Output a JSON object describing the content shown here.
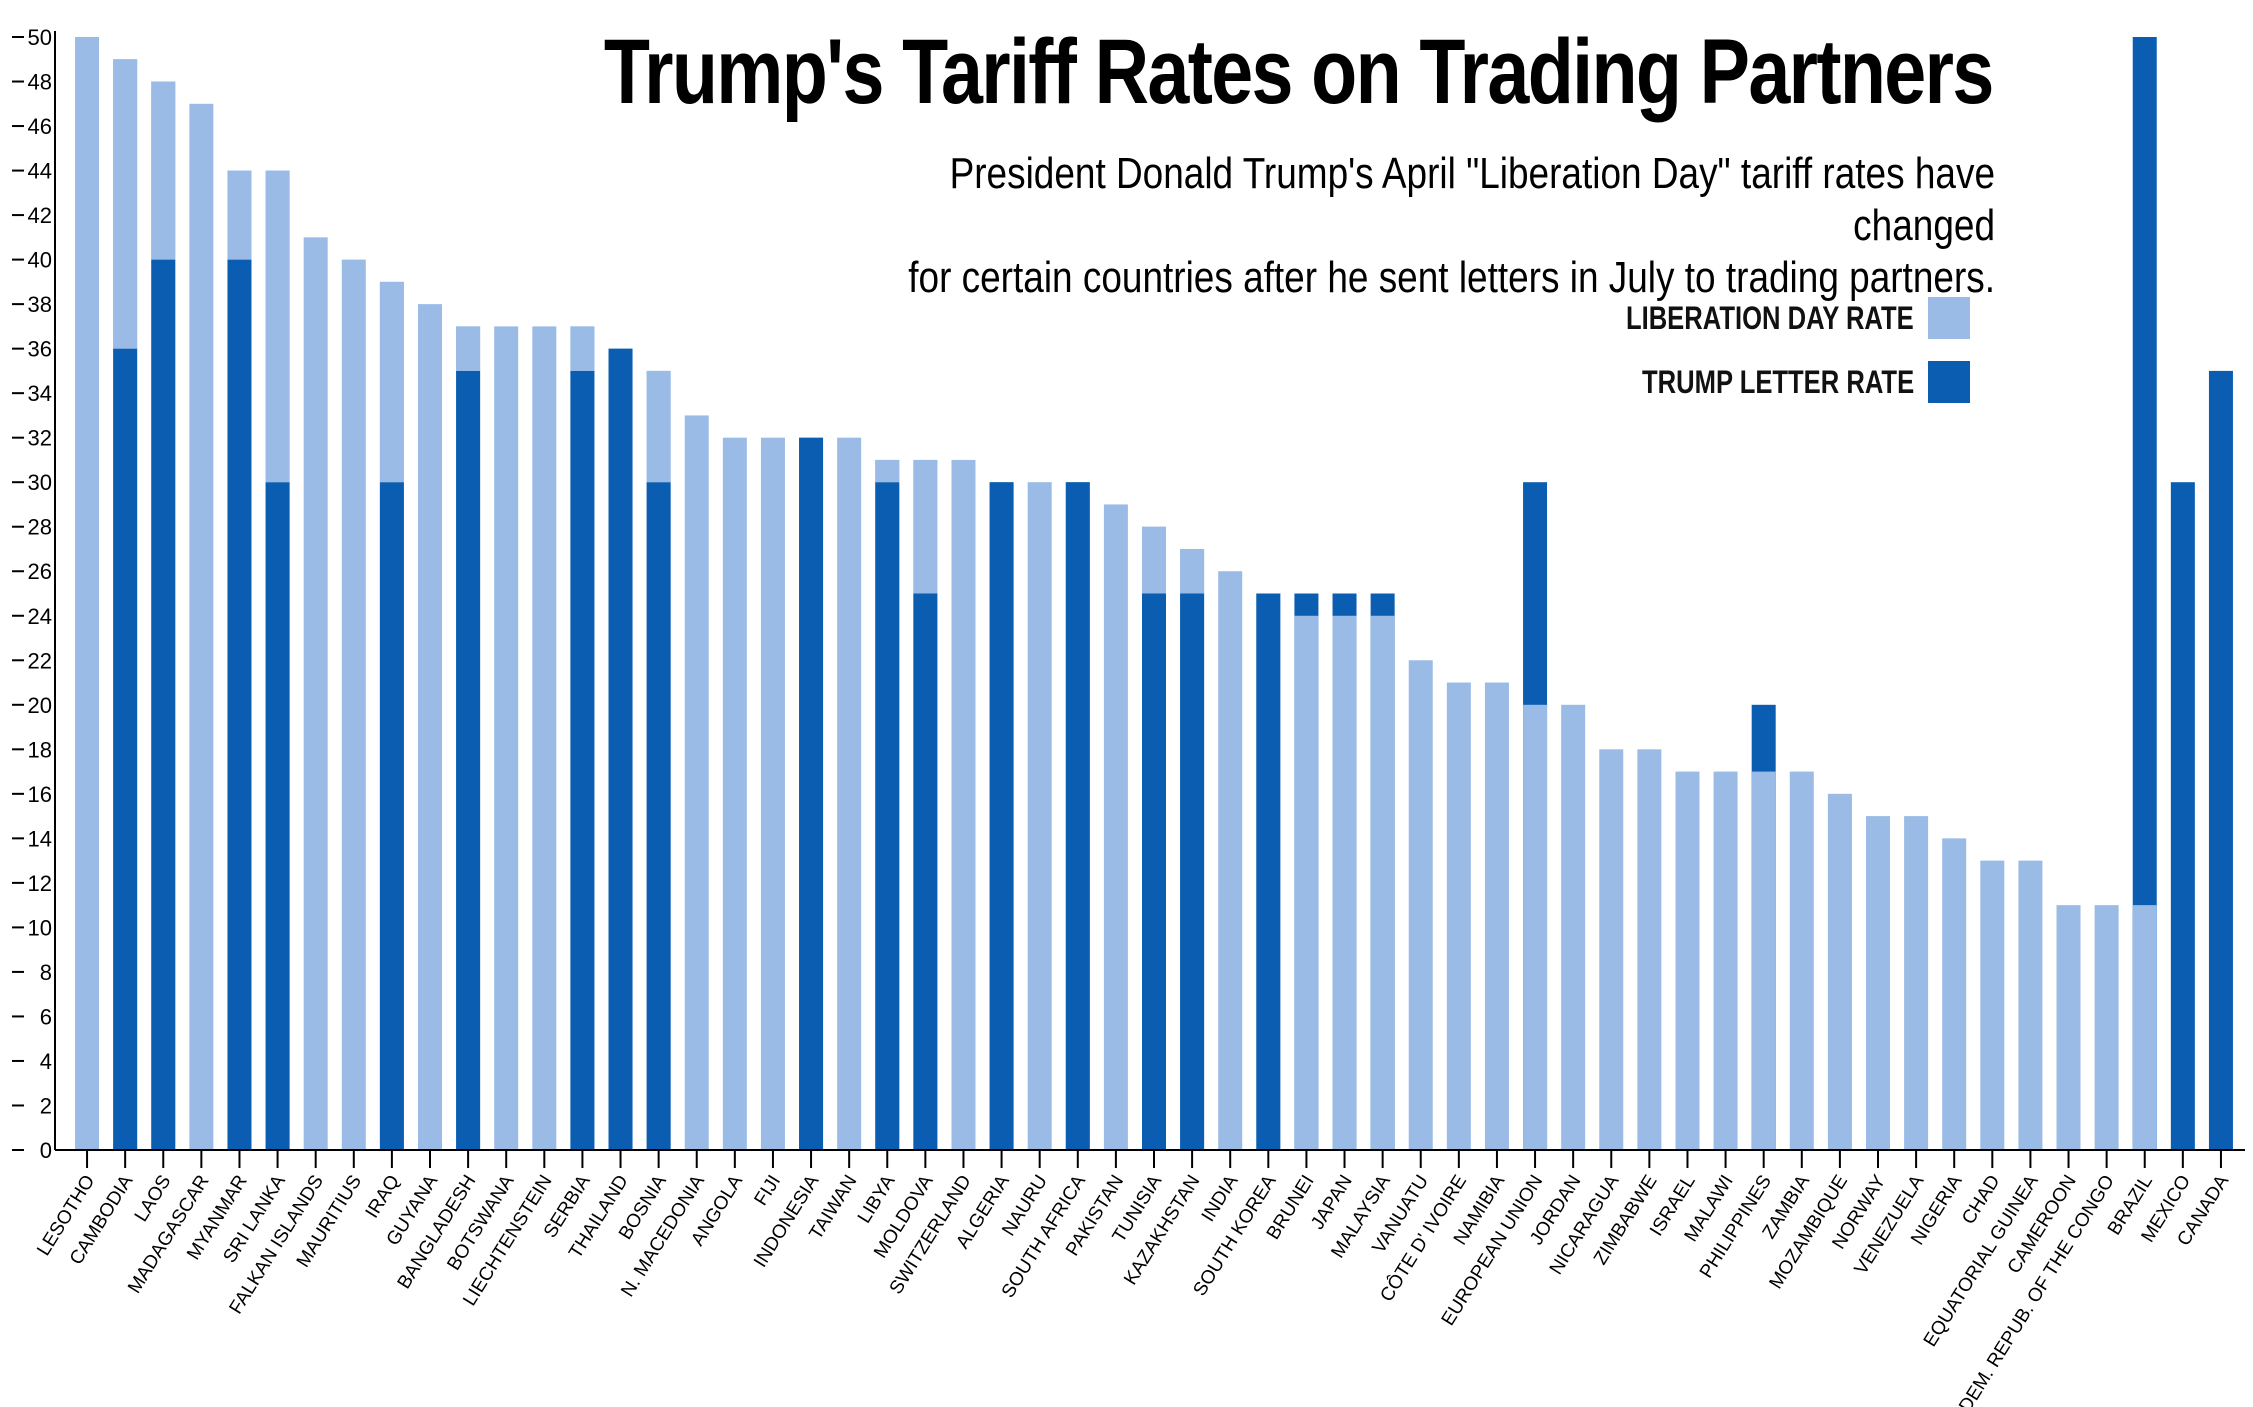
{
  "title": "Trump's Tariff Rates on Trading Partners",
  "subtitle_lines": [
    "President Donald Trump's April \"Liberation Day\" tariff rates have changed",
    "for certain countries after he sent letters in July to trading partners."
  ],
  "legend": [
    {
      "label": "LIBERATION DAY RATE",
      "color": "#9abbe6"
    },
    {
      "label": "TRUMP LETTER RATE",
      "color": "#0a5db0"
    }
  ],
  "colors": {
    "liberation": "#9abbe6",
    "letter": "#0a5db0",
    "axis": "#000000"
  },
  "chart_data": {
    "type": "bar",
    "ylim": [
      0,
      50
    ],
    "yticks": [
      0,
      2,
      4,
      6,
      8,
      10,
      12,
      14,
      16,
      18,
      20,
      22,
      24,
      26,
      28,
      30,
      32,
      34,
      36,
      38,
      40,
      42,
      44,
      46,
      48,
      50
    ],
    "categories": [
      "LESOTHO",
      "CAMBODIA",
      "LAOS",
      "MADAGASCAR",
      "MYANMAR",
      "SRI LANKA",
      "FALKAN ISLANDS",
      "MAURITIUS",
      "IRAQ",
      "GUYANA",
      "BANGLADESH",
      "BOTSWANA",
      "LIECHTENSTEIN",
      "SERBIA",
      "THAILAND",
      "BOSNIA",
      "N. MACEDONIA",
      "ANGOLA",
      "FIJI",
      "INDONESIA",
      "TAIWAN",
      "LIBYA",
      "MOLDOVA",
      "SWITZERLAND",
      "ALGERIA",
      "NAURU",
      "SOUTH AFRICA",
      "PAKISTAN",
      "TUNISIA",
      "KAZAKHSTAN",
      "INDIA",
      "SOUTH KOREA",
      "BRUNEI",
      "JAPAN",
      "MALAYSIA",
      "VANUATU",
      "CÔTE D' IVOIRE",
      "NAMIBIA",
      "EUROPEAN UNION",
      "JORDAN",
      "NICARAGUA",
      "ZIMBABWE",
      "ISRAEL",
      "MALAWI",
      "PHILIPPINES",
      "ZAMBIA",
      "MOZAMBIQUE",
      "NORWAY",
      "VENEZUELA",
      "NIGERIA",
      "CHAD",
      "EQUATORIAL GUINEA",
      "CAMEROON",
      "DEM. REPUB. OF THE CONGO",
      "BRAZIL",
      "MEXICO",
      "CANADA"
    ],
    "series": [
      {
        "name": "LIBERATION DAY RATE",
        "values": [
          50,
          49,
          48,
          47,
          44,
          44,
          41,
          40,
          39,
          38,
          37,
          37,
          37,
          37,
          36,
          35,
          33,
          32,
          32,
          32,
          32,
          31,
          31,
          31,
          30,
          30,
          30,
          29,
          28,
          27,
          26,
          25,
          24,
          24,
          24,
          22,
          21,
          21,
          20,
          20,
          18,
          18,
          17,
          17,
          17,
          17,
          16,
          15,
          15,
          14,
          13,
          13,
          11,
          11,
          11,
          null,
          null
        ]
      },
      {
        "name": "TRUMP LETTER RATE",
        "values": [
          null,
          36,
          40,
          null,
          40,
          30,
          null,
          null,
          30,
          null,
          35,
          null,
          null,
          35,
          36,
          30,
          null,
          null,
          null,
          32,
          null,
          30,
          25,
          null,
          30,
          null,
          30,
          null,
          25,
          25,
          null,
          25,
          25,
          25,
          25,
          null,
          null,
          null,
          30,
          null,
          null,
          null,
          null,
          null,
          20,
          null,
          null,
          null,
          null,
          null,
          null,
          null,
          null,
          null,
          50,
          30,
          35
        ]
      }
    ]
  }
}
